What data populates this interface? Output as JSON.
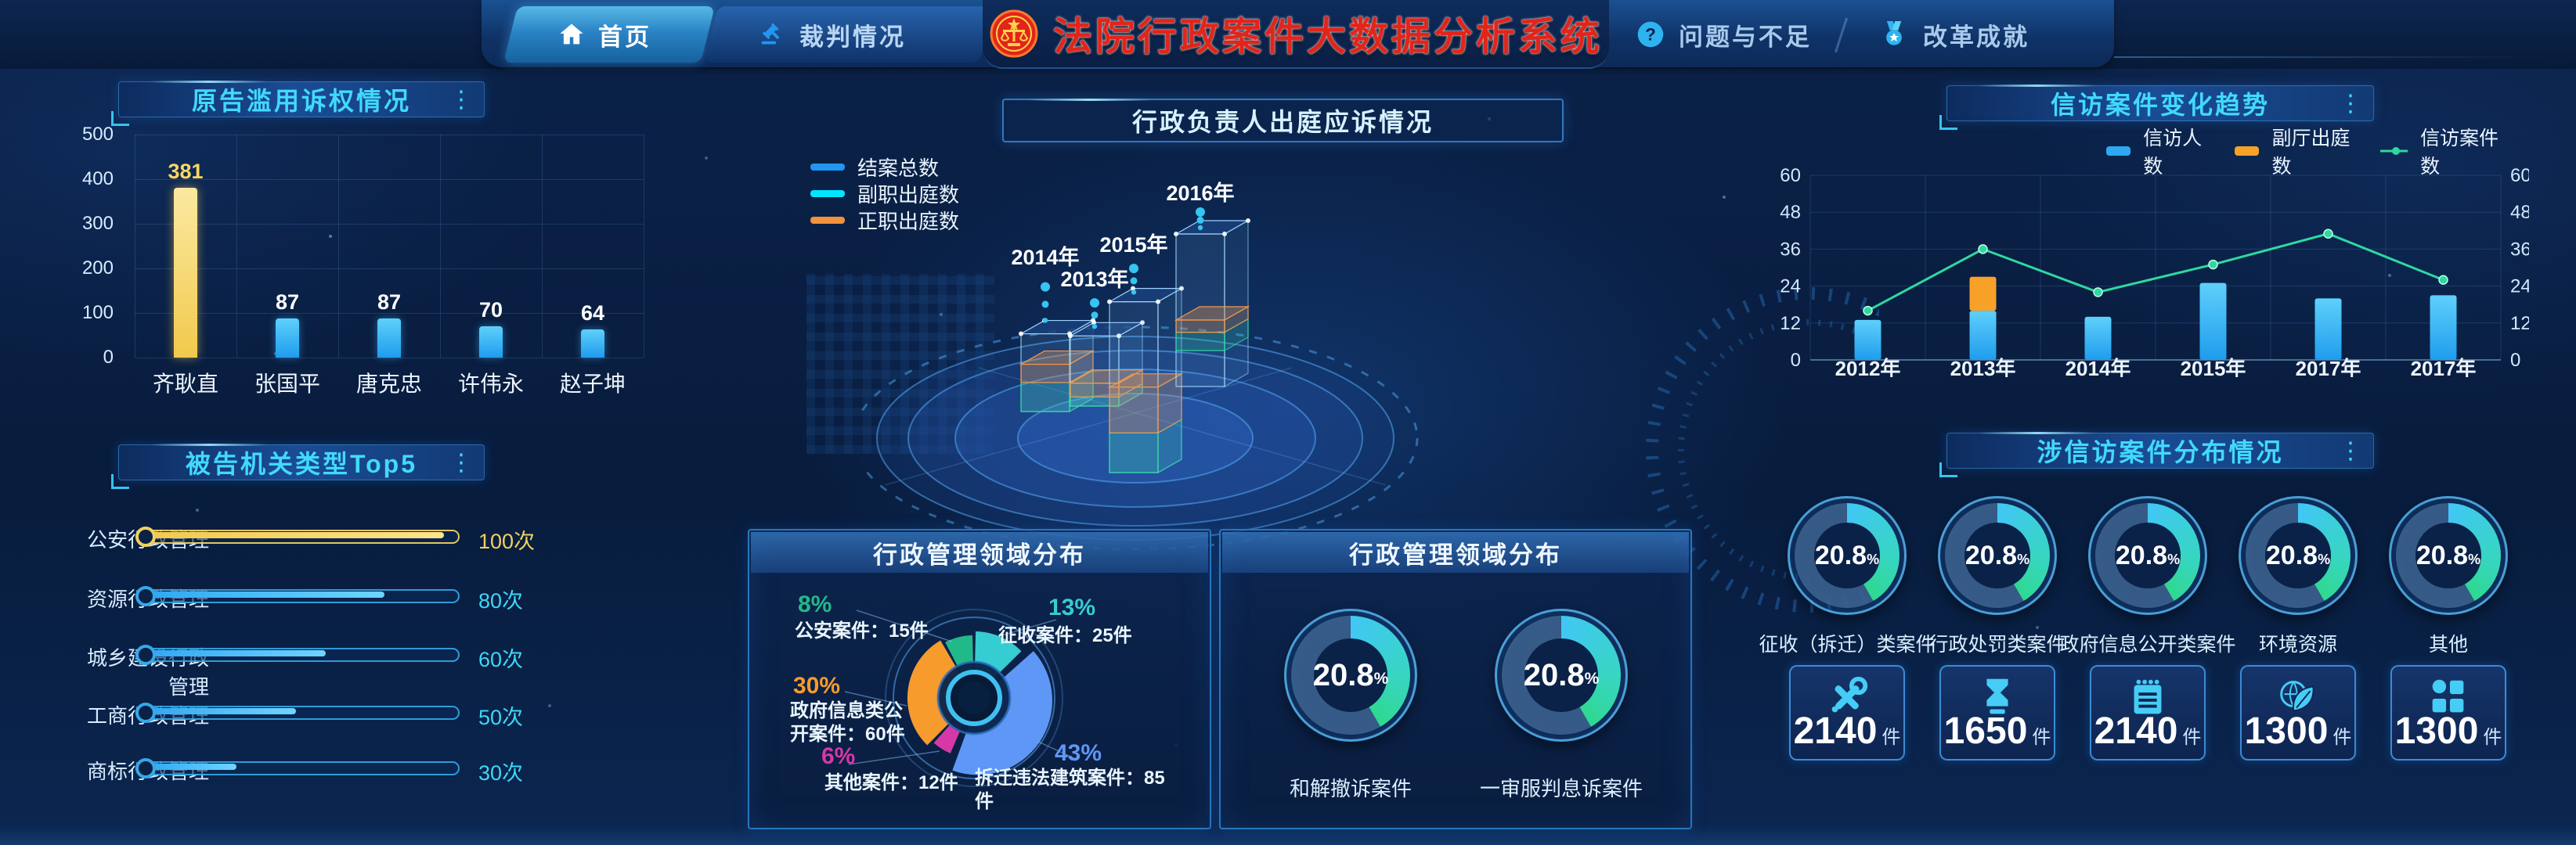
{
  "app": {
    "title": "法院行政案件大数据分析系统"
  },
  "nav": {
    "tabs": [
      {
        "id": "home",
        "label": "首页",
        "icon": "home-icon",
        "active": true
      },
      {
        "id": "judgment",
        "label": "裁判情况",
        "icon": "gavel-icon",
        "active": false
      },
      {
        "id": "issues",
        "label": "问题与不足",
        "icon": "question-icon",
        "active": false
      },
      {
        "id": "achievements",
        "label": "改革成就",
        "icon": "medal-icon",
        "active": false
      }
    ]
  },
  "panels": {
    "plaintiff_abuse": {
      "title": "原告滥用诉权情况"
    },
    "defendant_top5": {
      "title": "被告机关类型Top5"
    },
    "appearance": {
      "title": "行政负责人出庭应诉情况"
    },
    "admin_pie": {
      "title": "行政管理领域分布"
    },
    "admin_gauges": {
      "title": "行政管理领域分布"
    },
    "petition_trend": {
      "title": "信访案件变化趋势"
    },
    "petition_dist": {
      "title": "涉信访案件分布情况"
    }
  },
  "colors": {
    "accent": "#35c5f2",
    "title_red": "#e1251b",
    "bar_blue": "#2fa8f2",
    "bar_yellow": "#f2c94c",
    "orange": "#f7a128",
    "green": "#2fd8a0"
  },
  "chart_data": [
    {
      "id": "plaintiff_abuse",
      "type": "bar",
      "title": "原告滥用诉权情况",
      "categories": [
        "齐耿直",
        "张国平",
        "唐克忠",
        "许伟永",
        "赵子坤"
      ],
      "values": [
        381,
        87,
        87,
        70,
        64
      ],
      "highlight_index": 0,
      "ylim": [
        0,
        500
      ],
      "yticks": [
        0,
        100,
        200,
        300,
        400,
        500
      ],
      "grid": true
    },
    {
      "id": "defendant_top5",
      "type": "bar-horizontal",
      "title": "被告机关类型Top5",
      "categories": [
        "公安行政管理",
        "资源行政管理",
        "城乡建设行政管理",
        "工商行政管理",
        "商标行政管理"
      ],
      "values": [
        100,
        80,
        60,
        50,
        30
      ],
      "unit": "次",
      "highlight_index": 0,
      "xmax": 104
    },
    {
      "id": "appearance",
      "type": "3d-bar",
      "title": "行政负责人出庭应诉情况",
      "legend": [
        "结案总数",
        "副职出庭数",
        "正职出庭数"
      ],
      "categories": [
        "2014年",
        "2013年",
        "2015年",
        "2016年"
      ],
      "series": [
        {
          "name": "结案总数",
          "values": [
            51,
            46,
            112,
            100
          ]
        },
        {
          "name": "副职出庭数",
          "values": [
            19,
            6,
            26,
            12
          ]
        },
        {
          "name": "正职出庭数",
          "values": [
            12,
            9,
            30,
            8
          ]
        }
      ],
      "note_units": "relative"
    },
    {
      "id": "admin_pie",
      "type": "pie",
      "title": "行政管理领域分布",
      "unit": "件",
      "slices": [
        {
          "label": "征收案件",
          "count": 25,
          "pct": 13,
          "color": "#35cdd1",
          "radius": 85
        },
        {
          "label": "拆迁违法建筑案件",
          "count": 85,
          "pct": 43,
          "color": "#5e97f6",
          "radius": 95
        },
        {
          "label": "其他案件",
          "count": 12,
          "pct": 6,
          "color": "#d638a8",
          "radius": 77
        },
        {
          "label": "政府信息类公开案件",
          "count": 60,
          "pct": 30,
          "color": "#f79b2d",
          "radius": 85
        },
        {
          "label": "公安案件",
          "count": 15,
          "pct": 8,
          "color": "#22b98a",
          "radius": 80
        }
      ]
    },
    {
      "id": "admin_gauges",
      "type": "gauge",
      "title": "行政管理领域分布",
      "gauges": [
        {
          "label": "和解撤诉案件",
          "pct": 20.8
        },
        {
          "label": "一审服判息诉案件",
          "pct": 20.8
        }
      ]
    },
    {
      "id": "petition_trend",
      "type": "bar-line",
      "title": "信访案件变化趋势",
      "categories": [
        "2012年",
        "2013年",
        "2014年",
        "2015年",
        "2017年",
        "2017年"
      ],
      "series": [
        {
          "name": "信访人数",
          "type": "bar",
          "color": "#2fa8f2",
          "values": [
            13,
            16,
            14,
            25,
            20,
            21
          ]
        },
        {
          "name": "副厅出庭数",
          "type": "bar-stack",
          "color": "#f7a128",
          "values": [
            0,
            11,
            0,
            0,
            0,
            0
          ]
        },
        {
          "name": "信访案件数",
          "type": "line",
          "color": "#2fd8a0",
          "values": [
            16,
            36,
            22,
            31,
            41,
            26
          ]
        }
      ],
      "ylim": [
        0,
        60
      ],
      "yticks": [
        0,
        12,
        24,
        36,
        48,
        60
      ],
      "y2ticks": [
        0,
        12,
        24,
        36,
        48,
        60
      ],
      "grid": true
    },
    {
      "id": "petition_dist",
      "type": "donut-row",
      "title": "涉信访案件分布情况",
      "unit": "件",
      "items": [
        {
          "label": "征收（拆迁）类案件",
          "pct": 20.8,
          "count": 2140,
          "icon": "tools-icon"
        },
        {
          "label": "行政处罚类案件",
          "pct": 20.8,
          "count": 1650,
          "icon": "hourglass-icon"
        },
        {
          "label": "政府信息公开类案件",
          "pct": 20.8,
          "count": 2140,
          "icon": "notepad-icon"
        },
        {
          "label": "环境资源",
          "pct": 20.8,
          "count": 1300,
          "icon": "leaf-icon"
        },
        {
          "label": "其他",
          "pct": 20.8,
          "count": 1300,
          "icon": "grid-icon"
        }
      ]
    }
  ]
}
